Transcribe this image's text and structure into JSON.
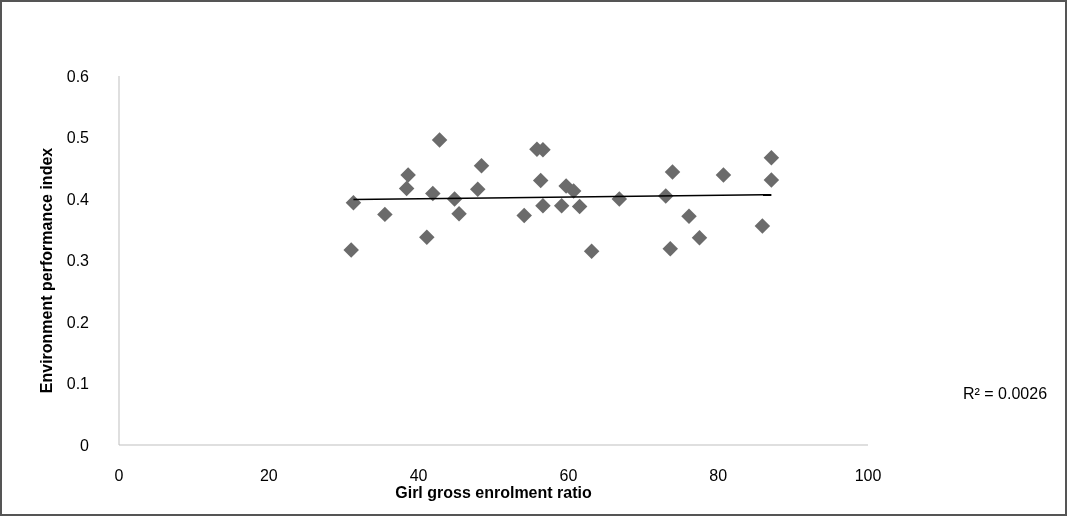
{
  "chart_data": {
    "type": "scatter",
    "xlabel": "Girl gross enrolment ratio",
    "ylabel": "Environment performance index",
    "xlim": [
      0,
      100
    ],
    "xticks": [
      0,
      20,
      40,
      60,
      80,
      100
    ],
    "ylim": [
      0,
      0.6
    ],
    "yticks": [
      0,
      0.1,
      0.2,
      0.3,
      0.4,
      0.5,
      0.6
    ],
    "grid": false,
    "marker": "diamond",
    "annotations": [
      "R² = 0.0026"
    ],
    "series": [
      {
        "color": "#6b6b6b",
        "x": [
          31.3,
          31.0,
          35.5,
          38.6,
          38.4,
          41.1,
          41.9,
          42.8,
          44.8,
          45.4,
          47.9,
          48.4,
          54.1,
          55.8,
          56.6,
          56.3,
          56.6,
          59.1,
          59.7,
          60.7,
          61.5,
          63.1,
          66.8,
          73.0,
          73.9,
          73.6,
          76.1,
          77.5,
          80.7,
          85.9,
          87.1,
          87.1
        ],
        "values": [
          0.394,
          0.317,
          0.375,
          0.439,
          0.417,
          0.338,
          0.409,
          0.496,
          0.4,
          0.376,
          0.416,
          0.454,
          0.373,
          0.481,
          0.48,
          0.43,
          0.389,
          0.389,
          0.421,
          0.413,
          0.388,
          0.315,
          0.4,
          0.405,
          0.444,
          0.319,
          0.372,
          0.337,
          0.439,
          0.356,
          0.467,
          0.431
        ]
      },
      {
        "type": "line",
        "color": "#000000",
        "marker": "none",
        "x": [
          31.3,
          87.1
        ],
        "values": [
          0.399,
          0.407
        ]
      }
    ]
  }
}
